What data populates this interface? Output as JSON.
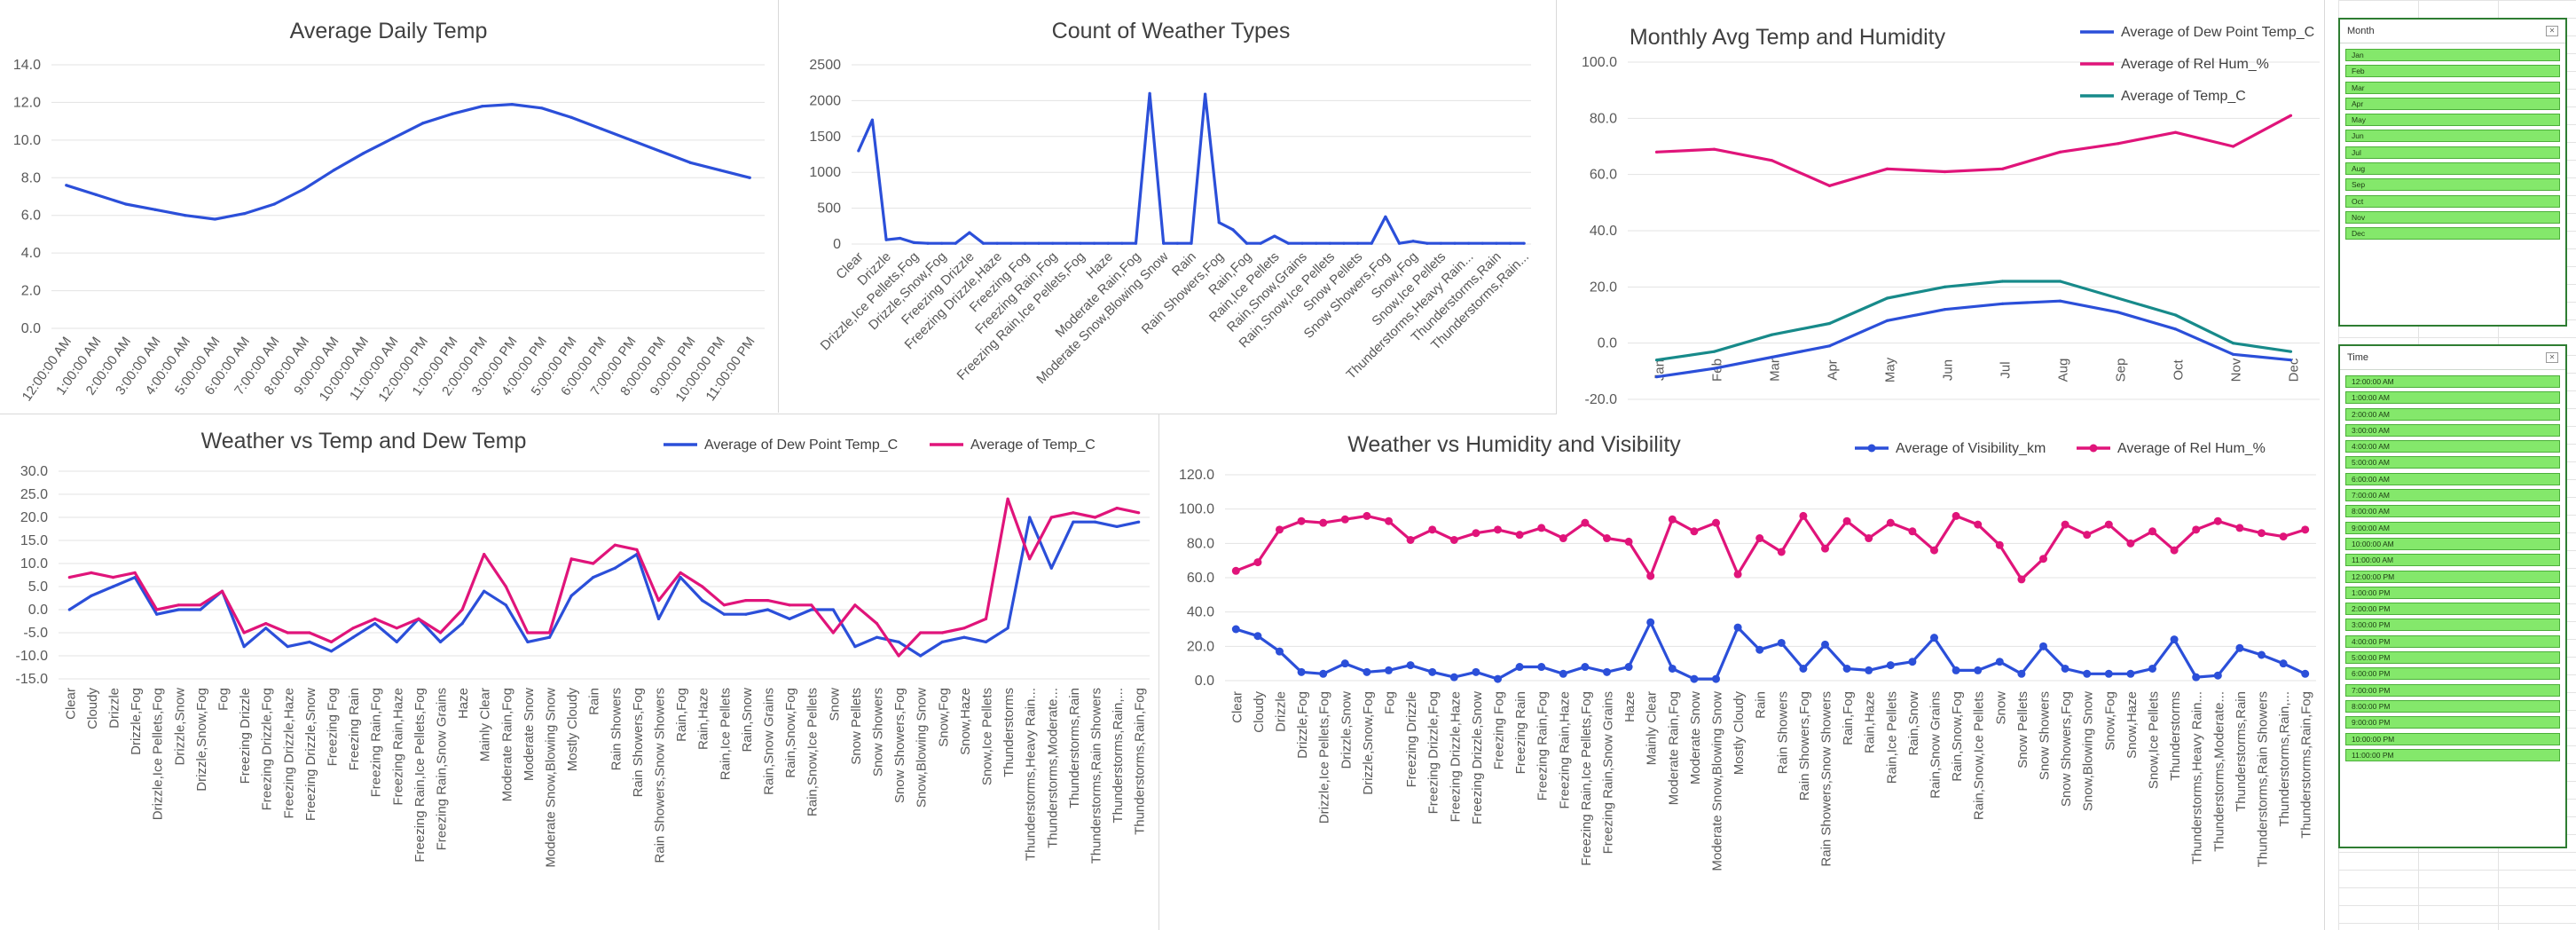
{
  "charts": {
    "daily": {
      "title": "Average Daily Temp",
      "color": "#2b4fd9",
      "x": [
        "12:00:00 AM",
        "1:00:00 AM",
        "2:00:00 AM",
        "3:00:00 AM",
        "4:00:00 AM",
        "5:00:00 AM",
        "6:00:00 AM",
        "7:00:00 AM",
        "8:00:00 AM",
        "9:00:00 AM",
        "10:00:00 AM",
        "11:00:00 AM",
        "12:00:00 PM",
        "1:00:00 PM",
        "2:00:00 PM",
        "3:00:00 PM",
        "4:00:00 PM",
        "5:00:00 PM",
        "6:00:00 PM",
        "7:00:00 PM",
        "8:00:00 PM",
        "9:00:00 PM",
        "10:00:00 PM",
        "11:00:00 PM"
      ],
      "y_ticks": [
        "0.0",
        "2.0",
        "4.0",
        "6.0",
        "8.0",
        "10.0",
        "12.0",
        "14.0"
      ]
    },
    "types": {
      "title": "Count of Weather Types",
      "color": "#2b4fd9",
      "x_labels": [
        "Clear",
        "Drizzle",
        "Drizzle,Ice Pellets,Fog",
        "Drizzle,Snow,Fog",
        "Freezing Drizzle",
        "Freezing Drizzle,Haze",
        "Freezing Fog",
        "Freezing Rain,Fog",
        "Freezing Rain,Ice Pellets,Fog",
        "Haze",
        "Moderate Rain,Fog",
        "Moderate Snow,Blowing Snow",
        "Rain",
        "Rain Showers,Fog",
        "Rain,Fog",
        "Rain,Ice Pellets",
        "Rain,Snow,Grains",
        "Rain,Snow,Ice Pellets",
        "Snow Pellets",
        "Snow Showers,Fog",
        "Snow,Fog",
        "Snow,Ice Pellets",
        "Thunderstorms,Heavy Rain...",
        "Thunderstorms,Rain",
        "Thunderstorms,Rain..."
      ],
      "y_ticks": [
        "0",
        "500",
        "1000",
        "1500",
        "2000",
        "2500"
      ]
    },
    "monthly": {
      "title": "Monthly Avg Temp and Humidity",
      "x": [
        "Jan",
        "Feb",
        "Mar",
        "Apr",
        "May",
        "Jun",
        "Jul",
        "Aug",
        "Sep",
        "Oct",
        "Nov",
        "Dec"
      ],
      "y_ticks": [
        "-20.0",
        "0.0",
        "20.0",
        "40.0",
        "60.0",
        "80.0",
        "100.0"
      ],
      "series": [
        {
          "name": "Average of Dew Point Temp_C",
          "color": "#2b4fd9"
        },
        {
          "name": "Average of Rel Hum_%",
          "color": "#e0147a"
        },
        {
          "name": "Average of Temp_C",
          "color": "#178a8a"
        }
      ]
    },
    "temp_dew": {
      "title": "Weather vs Temp and Dew Temp",
      "y_ticks": [
        "-15.0",
        "-10.0",
        "-5.0",
        "0.0",
        "5.0",
        "10.0",
        "15.0",
        "20.0",
        "25.0",
        "30.0"
      ],
      "series": [
        {
          "name": "Average of Dew Point Temp_C",
          "color": "#2b4fd9"
        },
        {
          "name": "Average of Temp_C",
          "color": "#e0147a"
        }
      ]
    },
    "hum_vis": {
      "title": "Weather vs Humidity and Visibility",
      "y_ticks": [
        "0.0",
        "20.0",
        "40.0",
        "60.0",
        "80.0",
        "100.0",
        "120.0"
      ],
      "series": [
        {
          "name": "Average of Visibility_km",
          "color": "#2b4fd9"
        },
        {
          "name": "Average of Rel Hum_%",
          "color": "#e0147a"
        }
      ]
    }
  },
  "weather_categories": [
    "Clear",
    "Cloudy",
    "Drizzle",
    "Drizzle,Fog",
    "Drizzle,Ice Pellets,Fog",
    "Drizzle,Snow",
    "Drizzle,Snow,Fog",
    "Fog",
    "Freezing Drizzle",
    "Freezing Drizzle,Fog",
    "Freezing Drizzle,Haze",
    "Freezing Drizzle,Snow",
    "Freezing Fog",
    "Freezing Rain",
    "Freezing Rain,Fog",
    "Freezing Rain,Haze",
    "Freezing Rain,Ice Pellets,Fog",
    "Freezing Rain,Snow Grains",
    "Haze",
    "Mainly Clear",
    "Moderate Rain,Fog",
    "Moderate Snow",
    "Moderate Snow,Blowing Snow",
    "Mostly Cloudy",
    "Rain",
    "Rain Showers",
    "Rain Showers,Fog",
    "Rain Showers,Snow Showers",
    "Rain,Fog",
    "Rain,Haze",
    "Rain,Ice Pellets",
    "Rain,Snow",
    "Rain,Snow Grains",
    "Rain,Snow,Fog",
    "Rain,Snow,Ice Pellets",
    "Snow",
    "Snow Pellets",
    "Snow Showers",
    "Snow Showers,Fog",
    "Snow,Blowing Snow",
    "Snow,Fog",
    "Snow,Haze",
    "Snow,Ice Pellets",
    "Thunderstorms",
    "Thunderstorms,Heavy Rain...",
    "Thunderstorms,Moderate...",
    "Thunderstorms,Rain",
    "Thunderstorms,Rain Showers",
    "Thunderstorms,Rain,...",
    "Thunderstorms,Rain,Fog"
  ],
  "chart_data": [
    {
      "type": "line",
      "title": "Average Daily Temp",
      "x": [
        "12:00:00 AM",
        "1:00:00 AM",
        "2:00:00 AM",
        "3:00:00 AM",
        "4:00:00 AM",
        "5:00:00 AM",
        "6:00:00 AM",
        "7:00:00 AM",
        "8:00:00 AM",
        "9:00:00 AM",
        "10:00:00 AM",
        "11:00:00 AM",
        "12:00:00 PM",
        "1:00:00 PM",
        "2:00:00 PM",
        "3:00:00 PM",
        "4:00:00 PM",
        "5:00:00 PM",
        "6:00:00 PM",
        "7:00:00 PM",
        "8:00:00 PM",
        "9:00:00 PM",
        "10:00:00 PM",
        "11:00:00 PM"
      ],
      "values": [
        7.6,
        7.1,
        6.6,
        6.3,
        6.0,
        5.8,
        6.1,
        6.6,
        7.4,
        8.4,
        9.3,
        10.1,
        10.9,
        11.4,
        11.8,
        11.9,
        11.7,
        11.2,
        10.6,
        10.0,
        9.4,
        8.8,
        8.4,
        8.0
      ],
      "ylim": [
        0,
        14
      ],
      "grid": true
    },
    {
      "type": "line",
      "title": "Count of Weather Types",
      "categories_count": 49,
      "values": [
        1300,
        1730,
        60,
        80,
        20,
        10,
        10,
        10,
        160,
        10,
        10,
        10,
        10,
        10,
        10,
        10,
        10,
        10,
        10,
        10,
        10,
        2100,
        10,
        10,
        10,
        2090,
        300,
        200,
        10,
        10,
        110,
        10,
        10,
        10,
        10,
        10,
        10,
        10,
        380,
        10,
        40,
        10,
        10,
        10,
        10,
        10,
        10,
        10,
        10
      ],
      "ylim": [
        0,
        2500
      ],
      "grid": true
    },
    {
      "type": "line",
      "title": "Monthly Avg Temp and Humidity",
      "categories": [
        "Jan",
        "Feb",
        "Mar",
        "Apr",
        "May",
        "Jun",
        "Jul",
        "Aug",
        "Sep",
        "Oct",
        "Nov",
        "Dec"
      ],
      "series": [
        {
          "name": "Average of Dew Point Temp_C",
          "values": [
            -12,
            -9,
            -5,
            -1,
            8,
            12,
            14,
            15,
            11,
            5,
            -4,
            -6
          ]
        },
        {
          "name": "Average of Rel Hum_%",
          "values": [
            68,
            69,
            65,
            56,
            62,
            61,
            62,
            68,
            71,
            75,
            70,
            81
          ]
        },
        {
          "name": "Average of Temp_C",
          "values": [
            -6,
            -3,
            3,
            7,
            16,
            20,
            22,
            22,
            16,
            10,
            0,
            -3
          ]
        }
      ],
      "ylim": [
        -20,
        100
      ],
      "grid": true,
      "legend": "top-right"
    },
    {
      "type": "line",
      "title": "Weather vs Temp and Dew Temp",
      "series": [
        {
          "name": "Average of Dew Point Temp_C",
          "values": [
            0,
            3,
            5,
            7,
            -1,
            0,
            0,
            4,
            -8,
            -4,
            -8,
            -7,
            -9,
            -6,
            -3,
            -7,
            -2,
            -7,
            -3,
            4,
            1,
            -7,
            -6,
            3,
            7,
            9,
            12,
            -2,
            7,
            2,
            -1,
            -1,
            0,
            -2,
            0,
            0,
            -8,
            -6,
            -7,
            -10,
            -7,
            -6,
            -7,
            -4,
            20,
            9,
            19,
            19,
            18,
            19
          ]
        },
        {
          "name": "Average of Temp_C",
          "values": [
            7,
            8,
            7,
            8,
            0,
            1,
            1,
            4,
            -5,
            -3,
            -5,
            -5,
            -7,
            -4,
            -2,
            -4,
            -2,
            -5,
            0,
            12,
            5,
            -5,
            -5,
            11,
            10,
            14,
            13,
            2,
            8,
            5,
            1,
            2,
            2,
            1,
            1,
            -5,
            1,
            -3,
            -10,
            -5,
            -5,
            -4,
            -2,
            24,
            11,
            20,
            21,
            20,
            22,
            21
          ]
        }
      ],
      "ylim": [
        -15,
        30
      ],
      "grid": true,
      "legend": "top"
    },
    {
      "type": "line",
      "title": "Weather vs Humidity and Visibility",
      "series": [
        {
          "name": "Average of Visibility_km",
          "values": [
            30,
            26,
            17,
            5,
            4,
            10,
            5,
            6,
            9,
            5,
            2,
            5,
            1,
            8,
            8,
            4,
            8,
            5,
            8,
            34,
            7,
            1,
            1,
            31,
            18,
            22,
            7,
            21,
            7,
            6,
            9,
            11,
            25,
            6,
            6,
            11,
            4,
            20,
            7,
            4,
            4,
            4,
            7,
            24,
            2,
            3,
            19,
            15,
            10,
            4
          ]
        },
        {
          "name": "Average of Rel Hum_%",
          "values": [
            64,
            69,
            88,
            93,
            92,
            94,
            96,
            93,
            82,
            88,
            82,
            86,
            88,
            85,
            89,
            83,
            92,
            83,
            81,
            61,
            94,
            87,
            92,
            62,
            83,
            75,
            96,
            77,
            93,
            83,
            92,
            87,
            76,
            96,
            91,
            79,
            59,
            71,
            91,
            85,
            91,
            80,
            87,
            76,
            88,
            93,
            89,
            86,
            84,
            88
          ]
        }
      ],
      "ylim": [
        0,
        120
      ],
      "grid": true,
      "legend": "top"
    }
  ],
  "slicers": {
    "month": {
      "header": "Month",
      "items": [
        "Jan",
        "Feb",
        "Mar",
        "Apr",
        "May",
        "Jun",
        "Jul",
        "Aug",
        "Sep",
        "Oct",
        "Nov",
        "Dec"
      ]
    },
    "time": {
      "header": "Time",
      "items": [
        "12:00:00 AM",
        "1:00:00 AM",
        "2:00:00 AM",
        "3:00:00 AM",
        "4:00:00 AM",
        "5:00:00 AM",
        "6:00:00 AM",
        "7:00:00 AM",
        "8:00:00 AM",
        "9:00:00 AM",
        "10:00:00 AM",
        "11:00:00 AM",
        "12:00:00 PM",
        "1:00:00 PM",
        "2:00:00 PM",
        "3:00:00 PM",
        "4:00:00 PM",
        "5:00:00 PM",
        "6:00:00 PM",
        "7:00:00 PM",
        "8:00:00 PM",
        "9:00:00 PM",
        "10:00:00 PM",
        "11:00:00 PM"
      ]
    }
  }
}
